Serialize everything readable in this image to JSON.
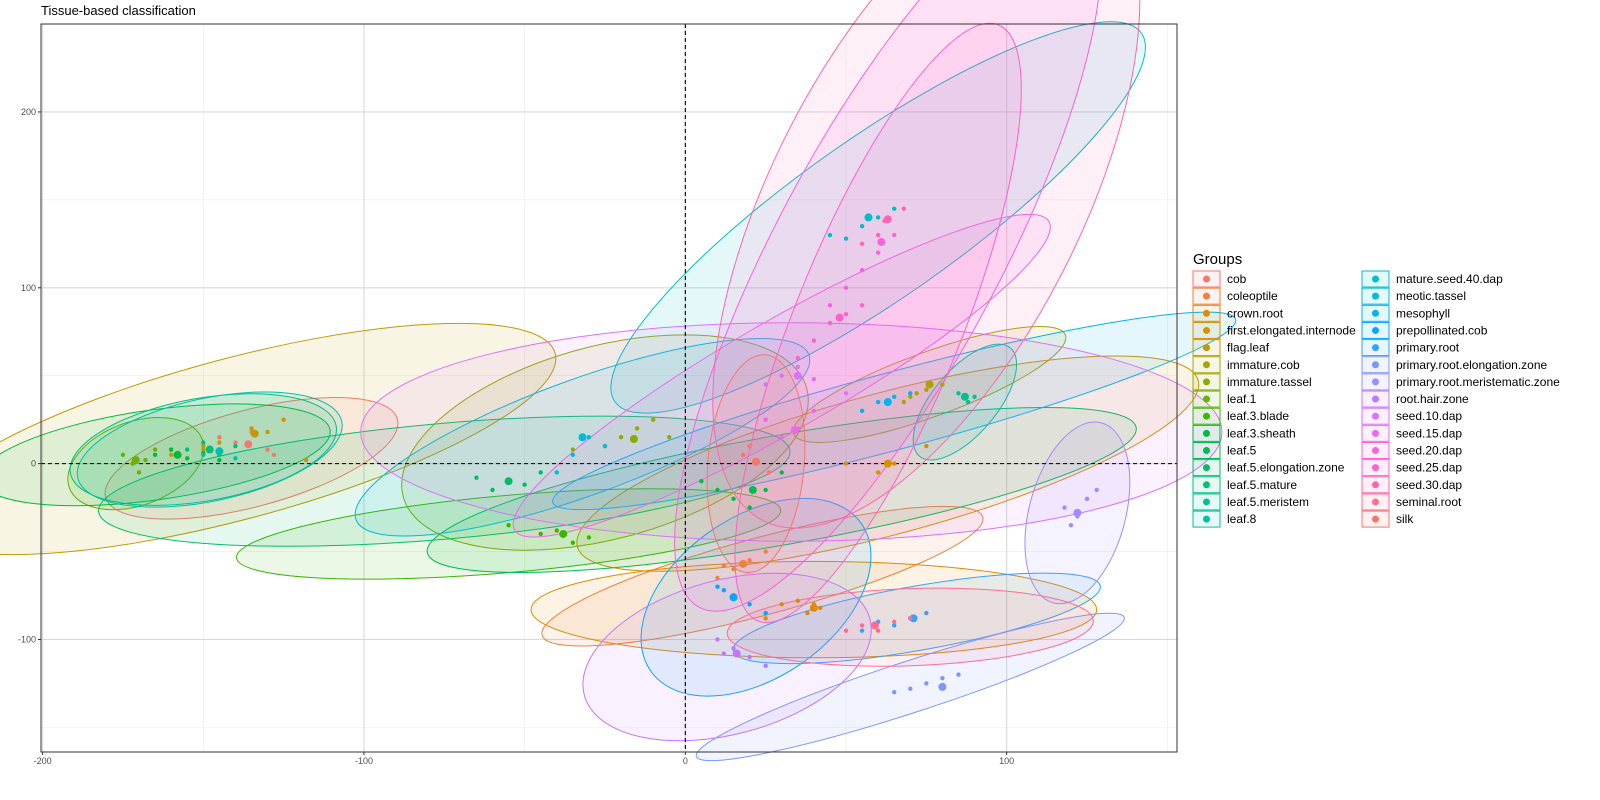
{
  "chart_data": {
    "type": "scatter",
    "title": "Tissue-based classification",
    "xlabel": "",
    "ylabel": "",
    "xlim": [
      -200.5,
      153
    ],
    "ylim": [
      -164,
      250
    ],
    "x_ticks": [
      -200,
      -100,
      0,
      100
    ],
    "y_ticks": [
      -100,
      0,
      100,
      200
    ],
    "grid": true,
    "reference_lines": {
      "x": 0,
      "y": 0,
      "style": "dashed"
    },
    "legend": {
      "title": "Groups",
      "placement": "right",
      "columns": 2
    },
    "series": [
      {
        "name": "cob",
        "color": "#F8766D",
        "points": [
          [
            -140,
            12
          ],
          [
            -135,
            18
          ],
          [
            -130,
            8
          ],
          [
            -145,
            15
          ],
          [
            -128,
            5
          ]
        ],
        "centroid": [
          -136,
          11
        ],
        "ellipse": {
          "cx": -135,
          "cy": 3,
          "rx": 47,
          "ry": 15,
          "angle": -15
        }
      },
      {
        "name": "coleoptile",
        "color": "#EE8042",
        "points": [
          [
            10,
            -65
          ],
          [
            15,
            -60
          ],
          [
            20,
            -55
          ],
          [
            25,
            -50
          ],
          [
            18,
            -57
          ],
          [
            12,
            -58
          ]
        ],
        "centroid": [
          18,
          -57
        ],
        "ellipse": {
          "cx": 24,
          "cy": -64,
          "rx": 71,
          "ry": 12,
          "angle": -15
        }
      },
      {
        "name": "crown.root",
        "color": "#E18A00",
        "points": [
          [
            30,
            -80
          ],
          [
            35,
            -78
          ],
          [
            38,
            -85
          ],
          [
            42,
            -82
          ],
          [
            25,
            -88
          ],
          [
            40,
            -80
          ]
        ],
        "centroid": [
          40,
          -82
        ],
        "ellipse": {
          "cx": 40,
          "cy": -83,
          "rx": 88,
          "ry": 15,
          "angle": 0
        }
      },
      {
        "name": "first.elongated.internode",
        "color": "#D39200",
        "points": [
          [
            -125,
            25
          ],
          [
            -118,
            2
          ],
          [
            -135,
            20
          ],
          [
            -150,
            10
          ],
          [
            65,
            0
          ],
          [
            75,
            10
          ],
          [
            60,
            -5
          ],
          [
            50,
            0
          ]
        ],
        "centroid": [
          63,
          0
        ],
        "ellipse": {
          "cx": 63,
          "cy": 0,
          "rx": 100,
          "ry": 22,
          "angle": -15
        }
      },
      {
        "name": "flag.leaf",
        "color": "#C09B00",
        "points": [
          [
            -130,
            18
          ],
          [
            -150,
            8
          ],
          [
            -160,
            5
          ],
          [
            -145,
            12
          ]
        ],
        "centroid": [
          -134,
          17
        ],
        "ellipse": {
          "cx": -140,
          "cy": 14,
          "rx": 103,
          "ry": 25,
          "angle": -15
        }
      },
      {
        "name": "immature.cob",
        "color": "#A9A400",
        "points": [
          [
            70,
            38
          ],
          [
            75,
            42
          ],
          [
            80,
            45
          ],
          [
            68,
            35
          ],
          [
            72,
            40
          ]
        ],
        "centroid": [
          76,
          45
        ],
        "ellipse": {
          "cx": 76,
          "cy": 45,
          "rx": 45,
          "ry": 10,
          "angle": -20
        }
      },
      {
        "name": "immature.tassel",
        "color": "#8EAB00",
        "points": [
          [
            -20,
            15
          ],
          [
            -15,
            20
          ],
          [
            -10,
            25
          ],
          [
            -25,
            10
          ],
          [
            -35,
            8
          ],
          [
            -5,
            15
          ]
        ],
        "centroid": [
          -16,
          14
        ],
        "ellipse": {
          "cx": -25,
          "cy": 12,
          "rx": 65,
          "ry": 30,
          "angle": -15
        }
      },
      {
        "name": "leaf.1",
        "color": "#6BB100",
        "points": [
          [
            -175,
            5
          ],
          [
            -172,
            0
          ],
          [
            -170,
            -5
          ],
          [
            -168,
            2
          ],
          [
            -165,
            8
          ]
        ],
        "centroid": [
          -171,
          2
        ],
        "ellipse": {
          "cx": -171,
          "cy": 0,
          "rx": 22,
          "ry": 13,
          "angle": -20
        }
      },
      {
        "name": "leaf.3.blade",
        "color": "#39B600",
        "points": [
          [
            -55,
            -35
          ],
          [
            -45,
            -40
          ],
          [
            -35,
            -45
          ],
          [
            -40,
            -38
          ],
          [
            -30,
            -42
          ]
        ],
        "centroid": [
          -38,
          -40
        ],
        "ellipse": {
          "cx": -55,
          "cy": -40,
          "rx": 85,
          "ry": 12,
          "angle": -5
        }
      },
      {
        "name": "leaf.3.sheath",
        "color": "#00BA38",
        "points": [
          [
            -165,
            5
          ],
          [
            -160,
            8
          ],
          [
            -155,
            3
          ],
          [
            -150,
            6
          ],
          [
            -145,
            2
          ]
        ],
        "centroid": [
          -158,
          5
        ],
        "ellipse": {
          "cx": -165,
          "cy": 5,
          "rx": 55,
          "ry": 14,
          "angle": -8
        }
      },
      {
        "name": "leaf.5",
        "color": "#00BB4E",
        "points": [
          [
            10,
            -15
          ],
          [
            15,
            -20
          ],
          [
            20,
            -25
          ],
          [
            25,
            -15
          ],
          [
            5,
            -10
          ],
          [
            30,
            -5
          ]
        ],
        "centroid": [
          21,
          -15
        ],
        "ellipse": {
          "cx": 30,
          "cy": -15,
          "rx": 112,
          "ry": 17,
          "angle": -10
        }
      },
      {
        "name": "leaf.5.elongation.zone",
        "color": "#00BE67",
        "points": [
          [
            -60,
            -15
          ],
          [
            -55,
            -10
          ],
          [
            -45,
            -5
          ],
          [
            -50,
            -12
          ],
          [
            -65,
            -8
          ]
        ],
        "centroid": [
          -55,
          -10
        ],
        "ellipse": {
          "cx": -75,
          "cy": -10,
          "rx": 108,
          "ry": 18,
          "angle": -5
        }
      },
      {
        "name": "leaf.5.mature",
        "color": "#00BF7D",
        "points": [
          [
            -155,
            8
          ],
          [
            -150,
            12
          ],
          [
            -145,
            5
          ],
          [
            -140,
            10
          ]
        ],
        "centroid": [
          -148,
          8
        ],
        "ellipse": {
          "cx": -150,
          "cy": 8,
          "rx": 42,
          "ry": 16,
          "angle": -10
        }
      },
      {
        "name": "leaf.5.meristem",
        "color": "#00C094",
        "points": [
          [
            85,
            40
          ],
          [
            88,
            35
          ],
          [
            90,
            38
          ]
        ],
        "centroid": [
          87,
          38
        ],
        "ellipse": {
          "cx": 87,
          "cy": 35,
          "rx": 22,
          "ry": 10,
          "angle": -50
        }
      },
      {
        "name": "leaf.8",
        "color": "#00C0AB",
        "points": [
          [
            -150,
            5
          ],
          [
            -145,
            8
          ],
          [
            -140,
            3
          ]
        ],
        "centroid": [
          -145,
          7
        ],
        "ellipse": {
          "cx": -148,
          "cy": 8,
          "rx": 42,
          "ry": 16,
          "angle": -12
        }
      },
      {
        "name": "mature.seed.40.dap",
        "color": "#00BFC4",
        "points": [
          [
            45,
            130
          ],
          [
            55,
            135
          ],
          [
            60,
            140
          ],
          [
            50,
            128
          ],
          [
            65,
            145
          ]
        ],
        "centroid": [
          57,
          140
        ],
        "ellipse": {
          "cx": 60,
          "cy": 140,
          "rx": 100,
          "ry": 25,
          "angle": -35
        }
      },
      {
        "name": "meotic.tassel",
        "color": "#00BBDA",
        "points": [
          [
            -40,
            -5
          ],
          [
            -30,
            15
          ],
          [
            -25,
            10
          ],
          [
            -35,
            5
          ]
        ],
        "centroid": [
          -32,
          15
        ],
        "ellipse": {
          "cx": -32,
          "cy": 15,
          "rx": 75,
          "ry": 18,
          "angle": -20
        }
      },
      {
        "name": "mesophyll",
        "color": "#00B4EF",
        "points": [
          [
            55,
            30
          ],
          [
            60,
            35
          ],
          [
            65,
            38
          ],
          [
            70,
            40
          ]
        ],
        "centroid": [
          63,
          35
        ],
        "ellipse": {
          "cx": 65,
          "cy": 30,
          "rx": 110,
          "ry": 12,
          "angle": -15
        }
      },
      {
        "name": "prepollinated.cob",
        "color": "#00A8FF",
        "points": [
          [
            10,
            -70
          ],
          [
            15,
            -75
          ],
          [
            20,
            -80
          ],
          [
            25,
            -85
          ],
          [
            12,
            -72
          ]
        ],
        "centroid": [
          15,
          -76
        ],
        "ellipse": {
          "cx": 22,
          "cy": -76,
          "rx": 40,
          "ry": 25,
          "angle": -35
        }
      },
      {
        "name": "primary.root",
        "color": "#35A2FF",
        "points": [
          [
            60,
            -90
          ],
          [
            65,
            -92
          ],
          [
            70,
            -88
          ],
          [
            75,
            -85
          ],
          [
            55,
            -95
          ]
        ],
        "centroid": [
          71,
          -88
        ],
        "ellipse": {
          "cx": 72,
          "cy": -88,
          "rx": 58,
          "ry": 10,
          "angle": -10
        }
      },
      {
        "name": "primary.root.elongation.zone",
        "color": "#7997FF",
        "points": [
          [
            65,
            -130
          ],
          [
            70,
            -128
          ],
          [
            75,
            -125
          ],
          [
            80,
            -122
          ],
          [
            85,
            -120
          ]
        ],
        "centroid": [
          80,
          -127
        ],
        "ellipse": {
          "cx": 70,
          "cy": -127,
          "rx": 70,
          "ry": 8,
          "angle": -18
        }
      },
      {
        "name": "primary.root.meristematic.zone",
        "color": "#9F8CFF",
        "points": [
          [
            118,
            -25
          ],
          [
            122,
            -30
          ],
          [
            125,
            -20
          ],
          [
            120,
            -35
          ],
          [
            128,
            -15
          ]
        ],
        "centroid": [
          122,
          -28
        ],
        "ellipse": {
          "cx": 122,
          "cy": -28,
          "rx": 29,
          "ry": 15,
          "angle": -75
        }
      },
      {
        "name": "root.hair.zone",
        "color": "#C077FF",
        "points": [
          [
            10,
            -100
          ],
          [
            15,
            -105
          ],
          [
            20,
            -110
          ],
          [
            25,
            -115
          ],
          [
            12,
            -108
          ]
        ],
        "centroid": [
          16,
          -108
        ],
        "ellipse": {
          "cx": 13,
          "cy": -110,
          "rx": 46,
          "ry": 24,
          "angle": -15
        }
      },
      {
        "name": "seed.10.dap",
        "color": "#DB72FB",
        "points": [
          [
            30,
            50
          ],
          [
            35,
            55
          ],
          [
            40,
            48
          ],
          [
            25,
            45
          ],
          [
            50,
            40
          ]
        ],
        "centroid": [
          35,
          50
        ],
        "ellipse": {
          "cx": 33,
          "cy": 18,
          "rx": 134,
          "ry": 34,
          "angle": 0
        }
      },
      {
        "name": "seed.15.dap",
        "color": "#ED68ED",
        "points": [
          [
            20,
            10
          ],
          [
            30,
            15
          ],
          [
            35,
            20
          ],
          [
            25,
            25
          ],
          [
            40,
            30
          ]
        ],
        "centroid": [
          34,
          19
        ],
        "ellipse": {
          "cx": 30,
          "cy": 50,
          "rx": 96,
          "ry": 17,
          "angle": -30
        }
      },
      {
        "name": "seed.20.dap",
        "color": "#F962DD",
        "points": [
          [
            50,
            100
          ],
          [
            55,
            110
          ],
          [
            60,
            120
          ],
          [
            45,
            90
          ],
          [
            65,
            130
          ]
        ],
        "centroid": [
          61,
          126
        ],
        "ellipse": {
          "cx": 63,
          "cy": 120,
          "rx": 125,
          "ry": 35,
          "angle": -62
        }
      },
      {
        "name": "seed.25.dap",
        "color": "#FF61C9",
        "points": [
          [
            40,
            70
          ],
          [
            45,
            80
          ],
          [
            50,
            85
          ],
          [
            55,
            90
          ],
          [
            35,
            60
          ]
        ],
        "centroid": [
          48,
          83
        ],
        "ellipse": {
          "cx": 60,
          "cy": 80,
          "rx": 100,
          "ry": 26,
          "angle": -68
        }
      },
      {
        "name": "seed.30.dap",
        "color": "#FF65AF",
        "points": [
          [
            55,
            125
          ],
          [
            60,
            130
          ],
          [
            62,
            138
          ],
          [
            68,
            145
          ]
        ],
        "centroid": [
          63,
          139
        ],
        "ellipse": {
          "cx": 75,
          "cy": 150,
          "rx": 112,
          "ry": 48,
          "angle": -63
        }
      },
      {
        "name": "seminal.root",
        "color": "#FF6C91",
        "points": [
          [
            55,
            -92
          ],
          [
            60,
            -95
          ],
          [
            65,
            -90
          ],
          [
            70,
            -88
          ],
          [
            50,
            -95
          ]
        ],
        "centroid": [
          59,
          -92
        ],
        "ellipse": {
          "cx": 70,
          "cy": -93,
          "rx": 57,
          "ry": 12,
          "angle": -2
        }
      },
      {
        "name": "silk",
        "color": "#F8766D",
        "points": [
          [
            18,
            5
          ],
          [
            22,
            0
          ],
          [
            26,
            -5
          ],
          [
            20,
            10
          ]
        ],
        "centroid": [
          22,
          1
        ],
        "ellipse": {
          "cx": 22,
          "cy": 0,
          "rx": 34,
          "ry": 15,
          "angle": -85
        }
      }
    ]
  }
}
